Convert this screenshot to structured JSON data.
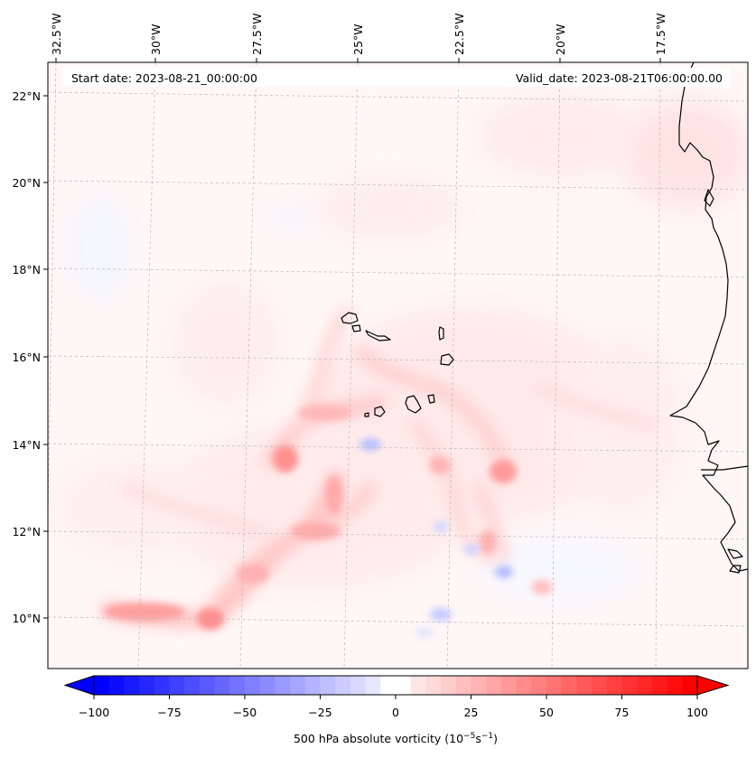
{
  "figure": {
    "start_label": "Start date: 2023-08-21_00:00:00",
    "valid_label": "Valid_date: 2023-08-21T06:00:00.00"
  },
  "axes": {
    "lon_ticks": [
      "32.5°W",
      "30°W",
      "27.5°W",
      "25°W",
      "22.5°W",
      "20°W",
      "17.5°W"
    ],
    "lat_ticks": [
      "22°N",
      "20°N",
      "18°N",
      "16°N",
      "14°N",
      "12°N",
      "10°N"
    ]
  },
  "colorbar": {
    "label_prefix": "500 hPa absolute vorticity (10",
    "label_exp1": "−5",
    "label_mid": "s",
    "label_exp2": "−1",
    "label_suffix": ")",
    "ticks": [
      "−100",
      "−75",
      "−50",
      "−25",
      "0",
      "25",
      "50",
      "75",
      "100"
    ],
    "min": -100,
    "max": 100,
    "step": 5,
    "neg_color": "#0000ff",
    "zero_color": "#ffffff",
    "pos_color": "#ff0000"
  },
  "colors": {
    "background_field": "#fff6f6",
    "coastline": "#000000",
    "gridline": "#b8b8b8"
  }
}
